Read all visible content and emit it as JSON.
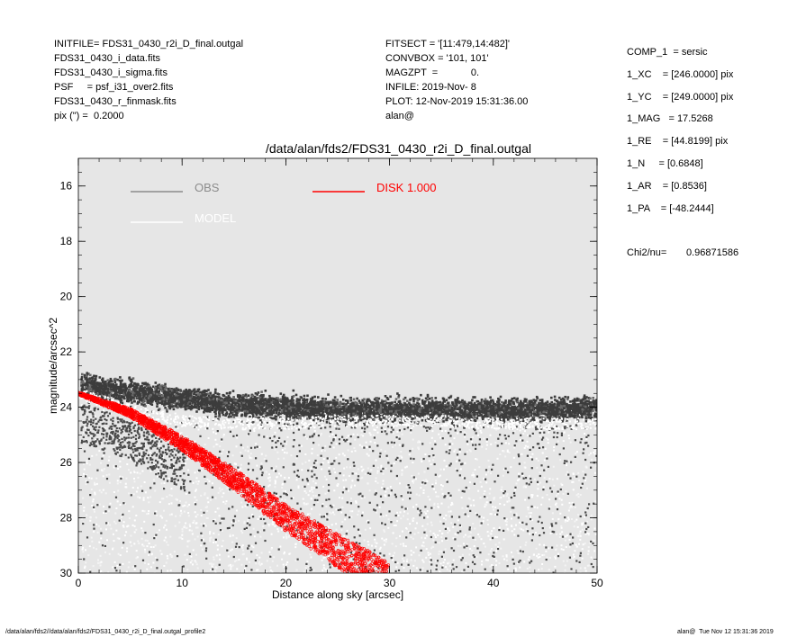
{
  "header_left": [
    "INITFILE= FDS31_0430_r2i_D_final.outgal",
    "FDS31_0430_i_data.fits",
    "FDS31_0430_i_sigma.fits",
    "PSF     = psf_i31_over2.fits",
    "FDS31_0430_r_finmask.fits",
    "pix (\") =  0.2000"
  ],
  "header_mid": [
    "FITSECT = '[11:479,14:482]'",
    "CONVBOX = '101, 101'",
    "MAGZPT  =            0.",
    "INFILE: 2019-Nov- 8",
    "PLOT: 12-Nov-2019 15:31:36.00",
    "alan@"
  ],
  "params": [
    "COMP_1  = sersic",
    "1_XC    = [246.0000] pix",
    "1_YC    = [249.0000] pix",
    "1_MAG   = 17.5268",
    "1_RE    = [44.8199] pix",
    "1_N     = [0.6848]",
    "1_AR    = [0.8536]",
    "1_PA    = [-48.2444]"
  ],
  "chi2_label": "Chi2/nu=",
  "chi2_value": "0.96871586",
  "footer_left": "/data/alan/fds2//data/alan/fds2/FDS31_0430_r2i_D_final.outgal_profile2",
  "footer_right": "alan@  Tue Nov 12 15:31:36 2019",
  "chart_data": {
    "type": "scatter",
    "title": "/data/alan/fds2/FDS31_0430_r2i_D_final.outgal",
    "xlabel": "Distance along sky [arcsec]",
    "ylabel": "magnitude/arcsec^2",
    "xlim": [
      0,
      50
    ],
    "ylim": [
      30,
      15
    ],
    "y_inverted": true,
    "x_ticks": [
      0,
      10,
      20,
      30,
      40,
      50
    ],
    "y_ticks": [
      16,
      18,
      20,
      22,
      24,
      26,
      28,
      30
    ],
    "background": "#e6e6e6",
    "legend": [
      {
        "label": "OBS",
        "color": "#8c8c8c"
      },
      {
        "label": "MODEL",
        "color": "#ffffff"
      },
      {
        "label": "DISK  1.000",
        "color": "#ff0000"
      }
    ],
    "series": [
      {
        "name": "OBS",
        "color": "#3c3c3c",
        "description_points_x": [
          0.5,
          2,
          5,
          10,
          15,
          20,
          25,
          30,
          35,
          40,
          45,
          50
        ],
        "upper_band_y": [
          23.4,
          23.5,
          23.6,
          23.9,
          24.1,
          24.2,
          24.3,
          24.3,
          24.3,
          24.3,
          24.3,
          24.2
        ],
        "scatter_floor_y": 30
      },
      {
        "name": "MODEL",
        "color": "#ffffff",
        "x": [
          0,
          5,
          10,
          15,
          20,
          25,
          30,
          35,
          40,
          45,
          50
        ],
        "y": [
          23.5,
          24.1,
          24.5,
          24.6,
          24.6,
          24.5,
          24.5,
          24.5,
          24.6,
          24.6,
          24.6
        ]
      },
      {
        "name": "DISK  1.000",
        "color": "#ff0000",
        "x": [
          0,
          5,
          10,
          15,
          20,
          25,
          30
        ],
        "y": [
          23.5,
          24.2,
          25.3,
          26.6,
          28.0,
          29.2,
          30.3
        ]
      }
    ]
  }
}
